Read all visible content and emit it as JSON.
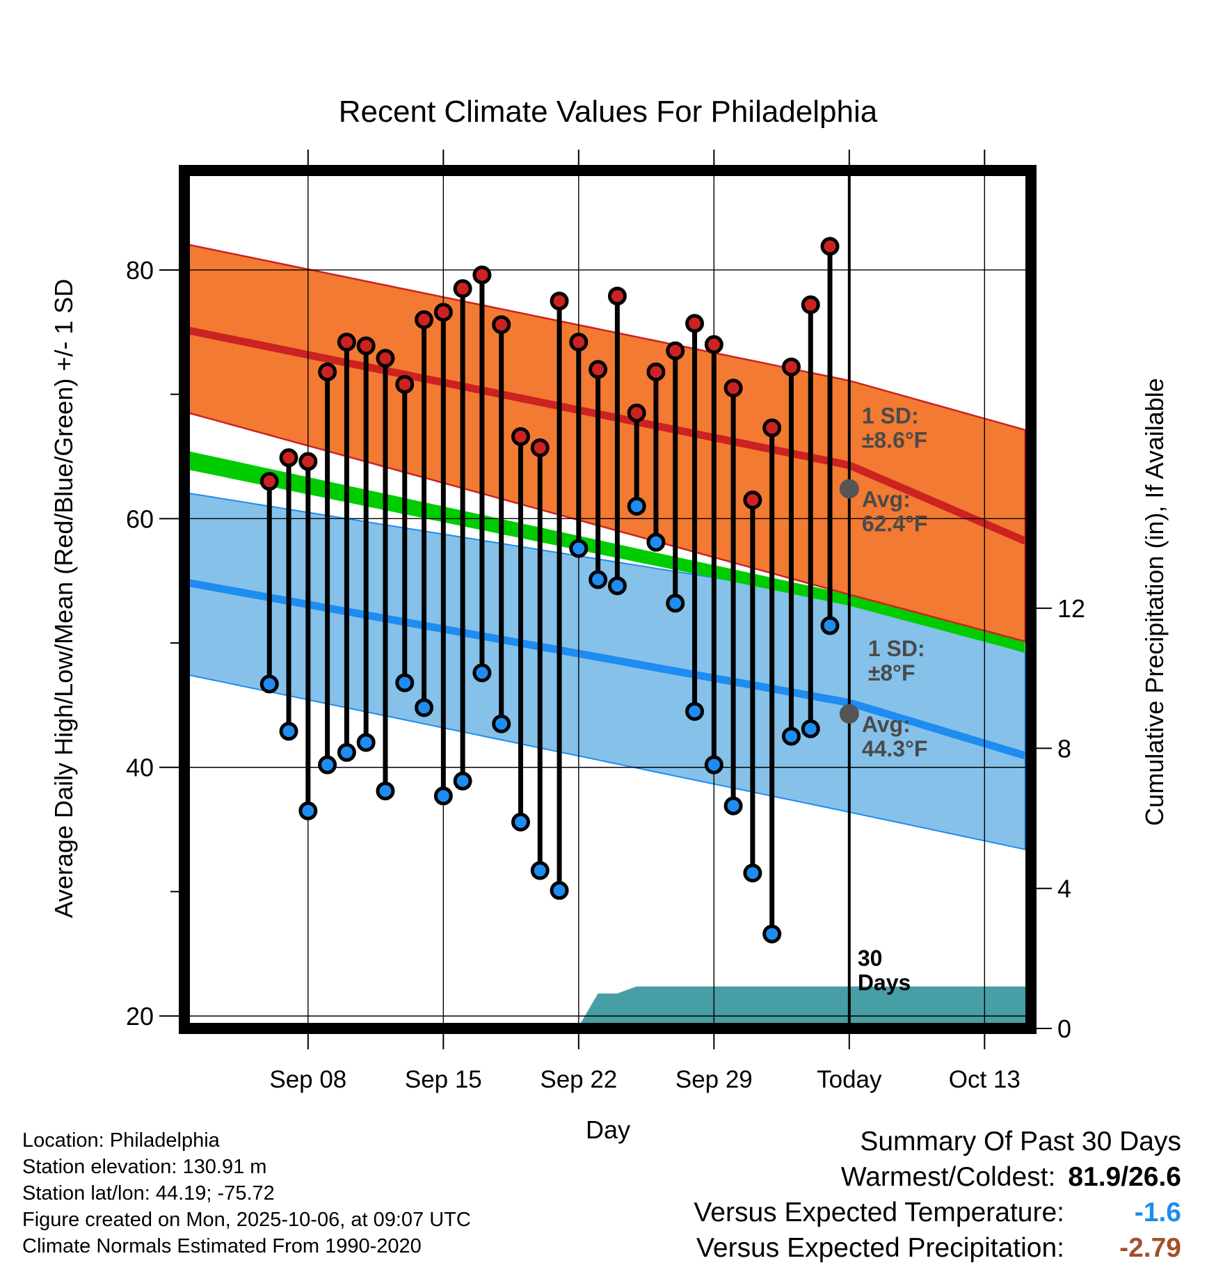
{
  "chart_data": {
    "type": "line",
    "title": "Recent Climate Values For Philadelphia",
    "xlabel": "Day",
    "ylabel_left": "Average Daily High/Low/Mean (Red/Blue/Green) +/- 1 SD",
    "ylabel_right": "Cumulative Precipitation (in), If Available",
    "ylim_left": [
      19,
      88
    ],
    "ylim_right": [
      0,
      24.5
    ],
    "xlim_days": [
      -34.4,
      9.4
    ],
    "left_ticks": [
      "20",
      "40",
      "60",
      "80"
    ],
    "left_minor_ticks": [
      30,
      50,
      70
    ],
    "right_ticks": [
      "0",
      "4",
      "8",
      "12"
    ],
    "x_ticks": [
      {
        "offset": -28,
        "label": "Sep 08"
      },
      {
        "offset": -21,
        "label": "Sep 15"
      },
      {
        "offset": -14,
        "label": "Sep 22"
      },
      {
        "offset": -7,
        "label": "Sep 29"
      },
      {
        "offset": 0,
        "label": "Today"
      },
      {
        "offset": 7,
        "label": "Oct 13"
      }
    ],
    "today_label": "30\nDays",
    "normals": {
      "x": [
        -34.4,
        0,
        9.4
      ],
      "high_mean": [
        75.2,
        64.3,
        58.0
      ],
      "high_upper": [
        82.1,
        71.1,
        67.0
      ],
      "high_lower": [
        68.6,
        53.9,
        50.0
      ],
      "low_mean": [
        54.9,
        45.2,
        40.8
      ],
      "low_upper": [
        62.1,
        53.5,
        49.1
      ],
      "low_lower": [
        47.5,
        36.4,
        33.3
      ],
      "daily_mean_upper": [
        65.5,
        53.9,
        50.0
      ],
      "daily_mean_lower": [
        64.0,
        53.0,
        49.1
      ]
    },
    "today_high_avg_label": "Avg:\n62.4°F",
    "today_high_sd_label": "1 SD:\n±8.6°F",
    "today_low_avg_label": "Avg:\n44.3°F",
    "today_low_sd_label": "1 SD:\n±8°F",
    "today_high_avg": 62.4,
    "today_low_avg": 44.3,
    "series": [
      {
        "name": "Daily High",
        "color": "#cc2222",
        "values": [
          63.0,
          64.9,
          64.6,
          71.8,
          74.2,
          73.9,
          72.9,
          70.8,
          76.0,
          76.6,
          78.5,
          79.6,
          75.6,
          66.6,
          65.7,
          77.5,
          74.2,
          72.0,
          77.9,
          68.5,
          71.8,
          73.5,
          75.7,
          74.0,
          70.5,
          61.5,
          67.3,
          72.2,
          77.2,
          81.9
        ]
      },
      {
        "name": "Daily Low",
        "color": "#1e8cf0",
        "values": [
          46.7,
          42.9,
          36.5,
          40.2,
          41.2,
          42.0,
          38.1,
          46.8,
          44.8,
          37.7,
          38.9,
          47.6,
          43.5,
          35.6,
          31.7,
          30.1,
          57.6,
          55.1,
          54.6,
          61.0,
          58.1,
          53.2,
          44.5,
          40.2,
          36.9,
          31.5,
          26.6,
          42.5,
          43.1,
          51.4
        ]
      }
    ],
    "precipitation": {
      "x": [
        -14.6,
        -14.0,
        -13.0,
        -12.0,
        -11.0,
        9.4
      ],
      "cumulative_in": [
        0,
        0.05,
        1.0,
        1.0,
        1.2,
        1.2
      ]
    }
  },
  "footer": {
    "location": "Location: Philadelphia",
    "elevation": "Station elevation: 130.91 m",
    "latlon": "Station lat/lon: 44.19; -75.72",
    "created": "Figure created on Mon, 2025-10-06, at 09:07 UTC",
    "normals": "Climate Normals Estimated From 1990-2020"
  },
  "summary": {
    "title": "Summary Of Past 30 Days",
    "warm_cold_label": "Warmest/Coldest:",
    "warm_cold_value": "81.9/26.6",
    "temp_label": "Versus Expected Temperature:",
    "temp_value": "-1.6",
    "temp_color": "#1e8cf0",
    "precip_label": "Versus Expected Precipitation:",
    "precip_value": "-2.79",
    "precip_color": "#a0522d"
  },
  "colors": {
    "high_band": "#f27a32",
    "high_line": "#cc2222",
    "low_band": "#85c1e9",
    "low_line": "#1e8cf0",
    "mean_band": "#00cc00",
    "precip_fill": "#479ea4",
    "avg_marker": "#555555"
  }
}
